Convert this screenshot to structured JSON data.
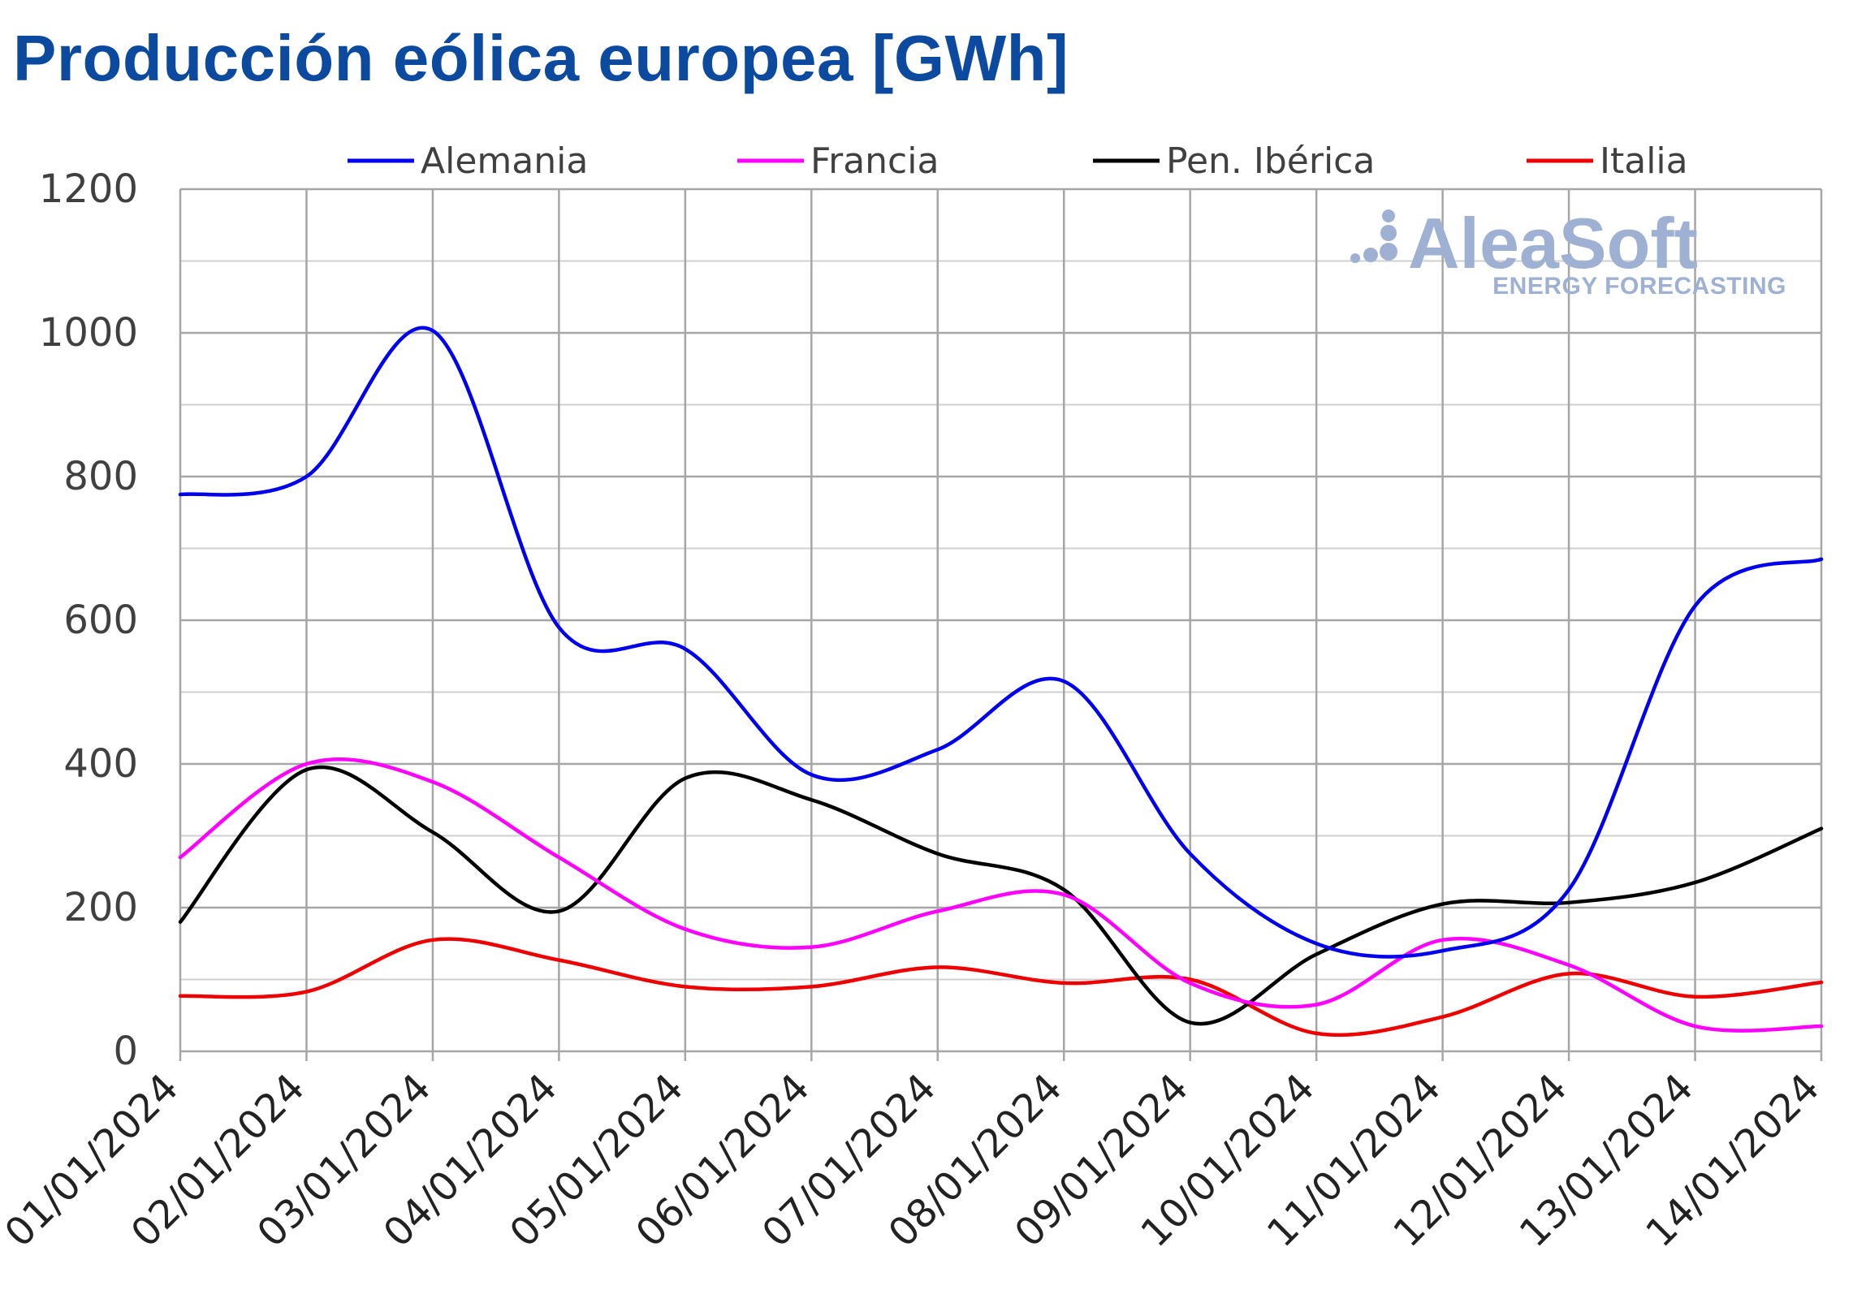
{
  "title": "Producción eólica europea [GWh]",
  "watermark": {
    "brand": "AleaSoft",
    "tagline": "ENERGY FORECASTING"
  },
  "colors": {
    "title": "#0b4a9e",
    "grid": "#a6a6a6",
    "logo": "#9fb1d3"
  },
  "chart_data": {
    "type": "line",
    "title": "Producción eólica europea [GWh]",
    "xlabel": "",
    "ylabel": "",
    "ylim": [
      0,
      1200
    ],
    "yticks": [
      0,
      200,
      400,
      600,
      800,
      1000,
      1200
    ],
    "grid": true,
    "legend_position": "top",
    "categories": [
      "01/01/2024",
      "02/01/2024",
      "03/01/2024",
      "04/01/2024",
      "05/01/2024",
      "06/01/2024",
      "07/01/2024",
      "08/01/2024",
      "09/01/2024",
      "10/01/2024",
      "11/01/2024",
      "12/01/2024",
      "13/01/2024",
      "14/01/2024"
    ],
    "series": [
      {
        "name": "Alemania",
        "color": "#0000ee",
        "values": [
          775,
          800,
          1003,
          590,
          560,
          385,
          420,
          515,
          275,
          150,
          140,
          225,
          620,
          685
        ]
      },
      {
        "name": "Francia",
        "color": "#ff00ff",
        "values": [
          270,
          400,
          375,
          270,
          170,
          145,
          195,
          218,
          95,
          65,
          155,
          120,
          35,
          35
        ]
      },
      {
        "name": "Pen. Ibérica",
        "color": "#000000",
        "values": [
          180,
          392,
          305,
          195,
          380,
          350,
          275,
          225,
          40,
          135,
          205,
          207,
          235,
          310
        ]
      },
      {
        "name": "Italia",
        "color": "#ee0000",
        "values": [
          77,
          83,
          155,
          127,
          90,
          90,
          117,
          95,
          100,
          25,
          48,
          108,
          76,
          96
        ]
      }
    ]
  }
}
